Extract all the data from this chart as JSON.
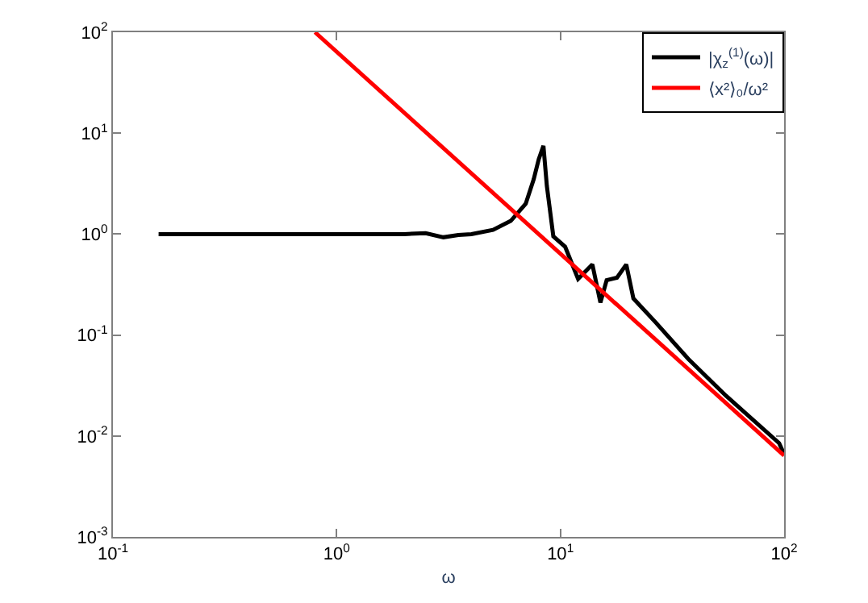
{
  "chart_data": {
    "type": "line",
    "xlabel": "ω",
    "log": "xy",
    "legend": "top right",
    "marker": "none",
    "line_style": "solid",
    "xlim": [
      0.1,
      100
    ],
    "ylim": [
      0.001,
      100
    ],
    "xticks": [
      {
        "value": 0.1,
        "label": "10$^{-1}$"
      },
      {
        "value": 1,
        "label": "10$^{0}$"
      },
      {
        "value": 10,
        "label": "10$^{1}$"
      },
      {
        "value": 100,
        "label": "10$^{2}$"
      }
    ],
    "yticks": [
      {
        "value": 0.001,
        "label": "10$^{-3}$"
      },
      {
        "value": 0.01,
        "label": "10$^{-2}$"
      },
      {
        "value": 0.1,
        "label": "10$^{-1}$"
      },
      {
        "value": 1,
        "label": "10$^{0}$"
      },
      {
        "value": 10,
        "label": "10$^{1}$"
      },
      {
        "value": 100,
        "label": "10$^{2}$"
      }
    ],
    "series": [
      {
        "name": "|χ$_{z}$$^{(1)}$(ω)|",
        "color": "#000000",
        "x": [
          0.16,
          0.5,
          1,
          2,
          2.5,
          3,
          3.5,
          4,
          5,
          6,
          7,
          7.6,
          8,
          8.4,
          8.7,
          9.3,
          10.5,
          12,
          13.9,
          15.1,
          16.1,
          17.9,
          19.7,
          21.2,
          26.7,
          37.3,
          55,
          95,
          100
        ],
        "values": [
          1,
          1,
          1,
          1,
          1.02,
          0.93,
          0.98,
          1,
          1.1,
          1.35,
          2,
          3.5,
          5.5,
          7.5,
          3,
          0.95,
          0.75,
          0.36,
          0.5,
          0.21,
          0.35,
          0.37,
          0.5,
          0.23,
          0.133,
          0.058,
          0.025,
          0.0085,
          0.0066
        ]
      },
      {
        "name": "⟨x²⟩₀/ω²",
        "color": "#ff0000",
        "x": [
          0.8,
          100
        ],
        "values": [
          100,
          0.0064
        ]
      }
    ]
  }
}
